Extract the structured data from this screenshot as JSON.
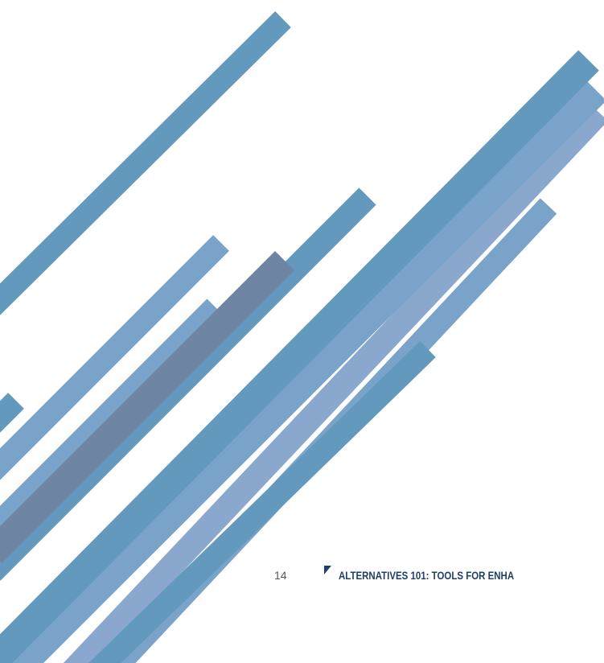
{
  "page": {
    "page_number": "14",
    "running_title": "ALTERNATIVES 101: TOOLS FOR ENHA"
  },
  "colors": {
    "stripe_blue": "#6299bd",
    "stripe_light": "#7aa3c9",
    "stripe_slate": "#6e86a4",
    "stripe_pale": "#8aa8cd",
    "marker": "#1f3f66"
  },
  "icons": {
    "footer_marker": "triangle-marker-icon"
  }
}
